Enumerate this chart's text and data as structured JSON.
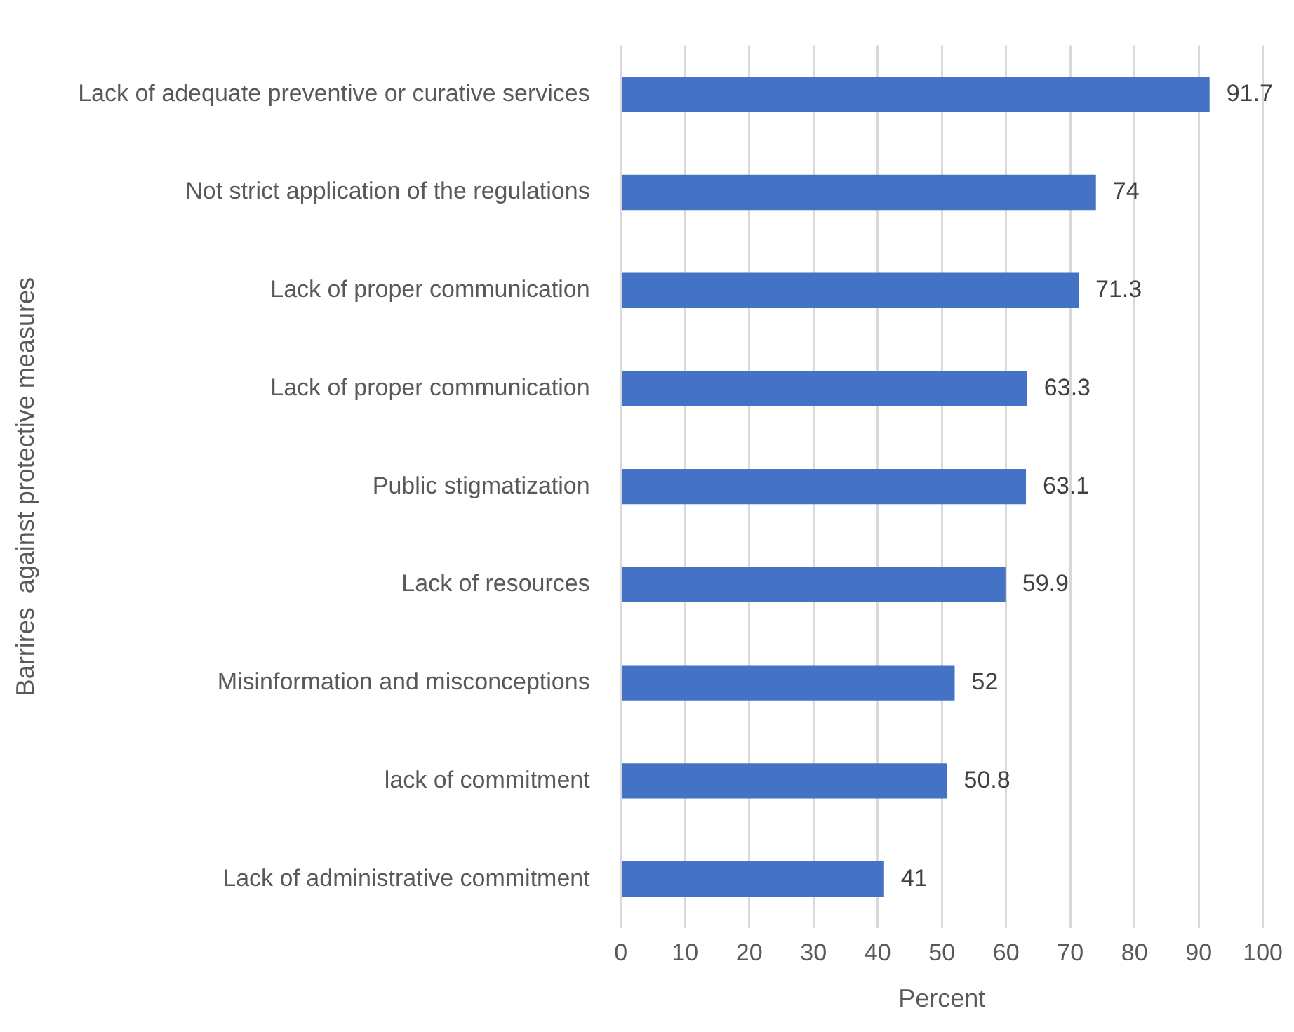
{
  "chart_data": {
    "type": "bar",
    "orientation": "horizontal",
    "xlabel": "Percent",
    "ylabel": "Barrires  against protective measures",
    "categories": [
      "Lack of adequate preventive or curative services",
      "Not strict application of the regulations",
      "Lack of proper communication",
      "Lack of proper communication",
      "Public stigmatization",
      "Lack of resources",
      "Misinformation and misconceptions",
      "lack of commitment",
      "Lack of administrative commitment"
    ],
    "values": [
      91.7,
      74,
      71.3,
      63.3,
      63.1,
      59.9,
      52,
      50.8,
      41
    ],
    "color": "#4472c4",
    "xlim": [
      0,
      100
    ],
    "xticks": [
      0,
      10,
      20,
      30,
      40,
      50,
      60,
      70,
      80,
      90,
      100
    ],
    "grid": "x",
    "data_labels": true
  }
}
